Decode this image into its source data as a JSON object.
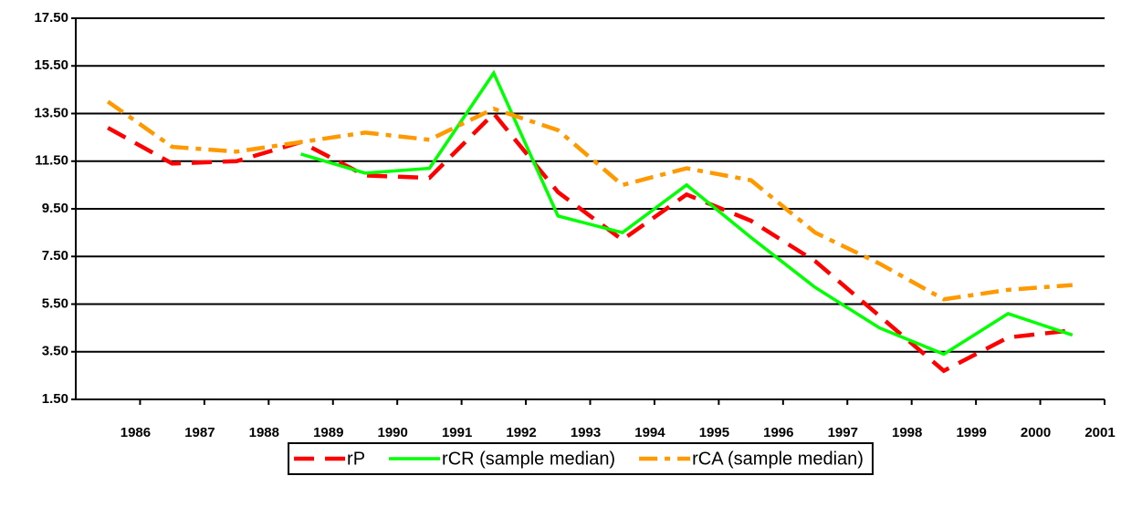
{
  "chart_data": {
    "type": "line",
    "categories": [
      "1986",
      "1987",
      "1988",
      "1989",
      "1990",
      "1991",
      "1992",
      "1993",
      "1994",
      "1995",
      "1996",
      "1997",
      "1998",
      "1999",
      "2000",
      "2001"
    ],
    "series": [
      {
        "name": "rP",
        "color": "#ff0000",
        "line_style": "dashed",
        "values": [
          12.9,
          11.4,
          11.5,
          12.3,
          10.9,
          10.8,
          13.5,
          10.2,
          8.2,
          10.1,
          9.0,
          7.3,
          5.0,
          2.7,
          4.1,
          4.4
        ]
      },
      {
        "name": "rCR (sample median)",
        "color": "#00ff00",
        "line_style": "solid",
        "values": [
          null,
          null,
          null,
          11.8,
          11.0,
          11.2,
          15.2,
          9.2,
          8.5,
          10.5,
          8.3,
          6.2,
          4.5,
          3.4,
          5.1,
          4.2
        ]
      },
      {
        "name": "rCA (sample median)",
        "color": "#ff9900",
        "line_style": "dash-dot",
        "values": [
          14.0,
          12.1,
          11.9,
          12.3,
          12.7,
          12.4,
          13.7,
          12.8,
          10.5,
          11.2,
          10.7,
          8.5,
          7.2,
          5.7,
          6.1,
          6.3
        ]
      }
    ],
    "ylim": [
      1.5,
      17.5
    ],
    "yticks": [
      {
        "value": 1.5,
        "label": "1.50"
      },
      {
        "value": 3.5,
        "label": "3.50"
      },
      {
        "value": 5.5,
        "label": "5.50"
      },
      {
        "value": 7.5,
        "label": "7.50"
      },
      {
        "value": 9.5,
        "label": "9.50"
      },
      {
        "value": 11.5,
        "label": "11.50"
      },
      {
        "value": 13.5,
        "label": "13.50"
      },
      {
        "value": 15.5,
        "label": "15.50"
      },
      {
        "value": 17.5,
        "label": "17.50"
      }
    ],
    "grid": true,
    "legend": "bottom"
  }
}
